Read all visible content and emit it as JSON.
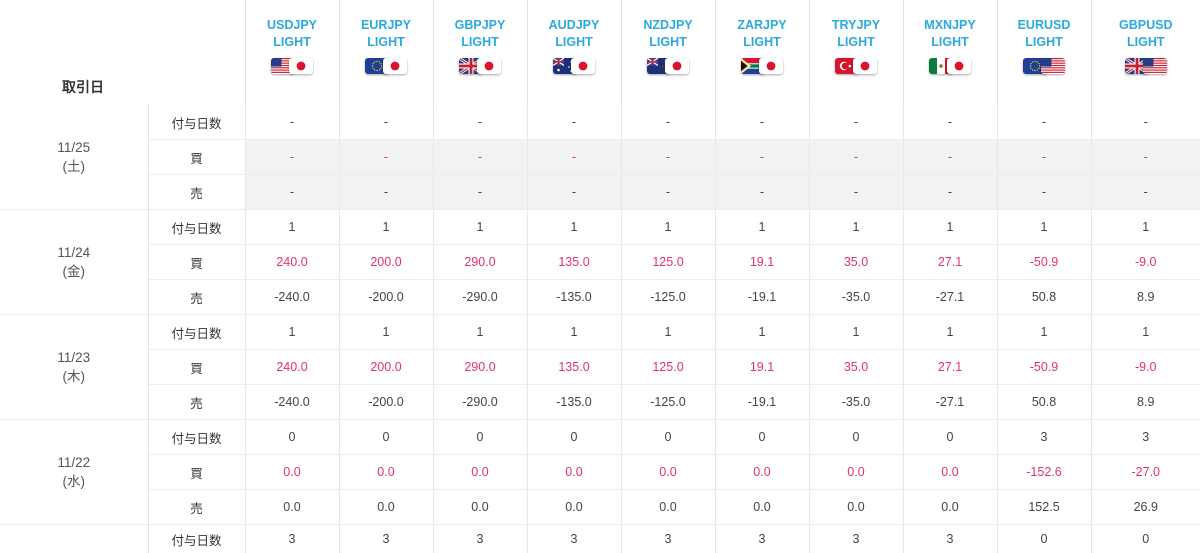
{
  "header": {
    "date_col_label": "取引日",
    "pairs": [
      {
        "code": "USDJPY",
        "sub": "LIGHT",
        "flag_left_icon": "us-flag-icon",
        "flag_right_icon": "jp-flag-icon"
      },
      {
        "code": "EURJPY",
        "sub": "LIGHT",
        "flag_left_icon": "eu-flag-icon",
        "flag_right_icon": "jp-flag-icon"
      },
      {
        "code": "GBPJPY",
        "sub": "LIGHT",
        "flag_left_icon": "gb-flag-icon",
        "flag_right_icon": "jp-flag-icon"
      },
      {
        "code": "AUDJPY",
        "sub": "LIGHT",
        "flag_left_icon": "au-flag-icon",
        "flag_right_icon": "jp-flag-icon"
      },
      {
        "code": "NZDJPY",
        "sub": "LIGHT",
        "flag_left_icon": "nz-flag-icon",
        "flag_right_icon": "jp-flag-icon"
      },
      {
        "code": "ZARJPY",
        "sub": "LIGHT",
        "flag_left_icon": "za-flag-icon",
        "flag_right_icon": "jp-flag-icon"
      },
      {
        "code": "TRYJPY",
        "sub": "LIGHT",
        "flag_left_icon": "tr-flag-icon",
        "flag_right_icon": "jp-flag-icon"
      },
      {
        "code": "MXNJPY",
        "sub": "LIGHT",
        "flag_left_icon": "mx-flag-icon",
        "flag_right_icon": "jp-flag-icon"
      },
      {
        "code": "EURUSD",
        "sub": "LIGHT",
        "flag_left_icon": "eu-flag-icon",
        "flag_right_icon": "us-flag-icon"
      },
      {
        "code": "GBPUSD",
        "sub": "LIGHT",
        "flag_left_icon": "gb-flag-icon",
        "flag_right_icon": "us-flag-icon"
      }
    ]
  },
  "row_labels": {
    "days": "付与日数",
    "buy": "買",
    "sell": "売"
  },
  "groups": [
    {
      "date": "11/25",
      "weekday": "(土)",
      "days": [
        "-",
        "-",
        "-",
        "-",
        "-",
        "-",
        "-",
        "-",
        "-",
        "-"
      ],
      "buy": [
        "-",
        "-",
        "-",
        "-",
        "-",
        "-",
        "-",
        "-",
        "-",
        "-"
      ],
      "sell": [
        "-",
        "-",
        "-",
        "-",
        "-",
        "-",
        "-",
        "-",
        "-",
        "-"
      ]
    },
    {
      "date": "11/24",
      "weekday": "(金)",
      "days": [
        "1",
        "1",
        "1",
        "1",
        "1",
        "1",
        "1",
        "1",
        "1",
        "1"
      ],
      "buy": [
        "240.0",
        "200.0",
        "290.0",
        "135.0",
        "125.0",
        "19.1",
        "35.0",
        "27.1",
        "-50.9",
        "-9.0"
      ],
      "sell": [
        "-240.0",
        "-200.0",
        "-290.0",
        "-135.0",
        "-125.0",
        "-19.1",
        "-35.0",
        "-27.1",
        "50.8",
        "8.9"
      ]
    },
    {
      "date": "11/23",
      "weekday": "(木)",
      "days": [
        "1",
        "1",
        "1",
        "1",
        "1",
        "1",
        "1",
        "1",
        "1",
        "1"
      ],
      "buy": [
        "240.0",
        "200.0",
        "290.0",
        "135.0",
        "125.0",
        "19.1",
        "35.0",
        "27.1",
        "-50.9",
        "-9.0"
      ],
      "sell": [
        "-240.0",
        "-200.0",
        "-290.0",
        "-135.0",
        "-125.0",
        "-19.1",
        "-35.0",
        "-27.1",
        "50.8",
        "8.9"
      ]
    },
    {
      "date": "11/22",
      "weekday": "(水)",
      "days": [
        "0",
        "0",
        "0",
        "0",
        "0",
        "0",
        "0",
        "0",
        "3",
        "3"
      ],
      "buy": [
        "0.0",
        "0.0",
        "0.0",
        "0.0",
        "0.0",
        "0.0",
        "0.0",
        "0.0",
        "-152.6",
        "-27.0"
      ],
      "sell": [
        "0.0",
        "0.0",
        "0.0",
        "0.0",
        "0.0",
        "0.0",
        "0.0",
        "0.0",
        "152.5",
        "26.9"
      ]
    }
  ],
  "partial_row": {
    "days": [
      "3",
      "3",
      "3",
      "3",
      "3",
      "3",
      "3",
      "3",
      "0",
      "0"
    ]
  },
  "colors": {
    "pair_header": "#2aa9e0",
    "buy_value": "#e0336a",
    "shaded_row": "#f2f2f2"
  }
}
